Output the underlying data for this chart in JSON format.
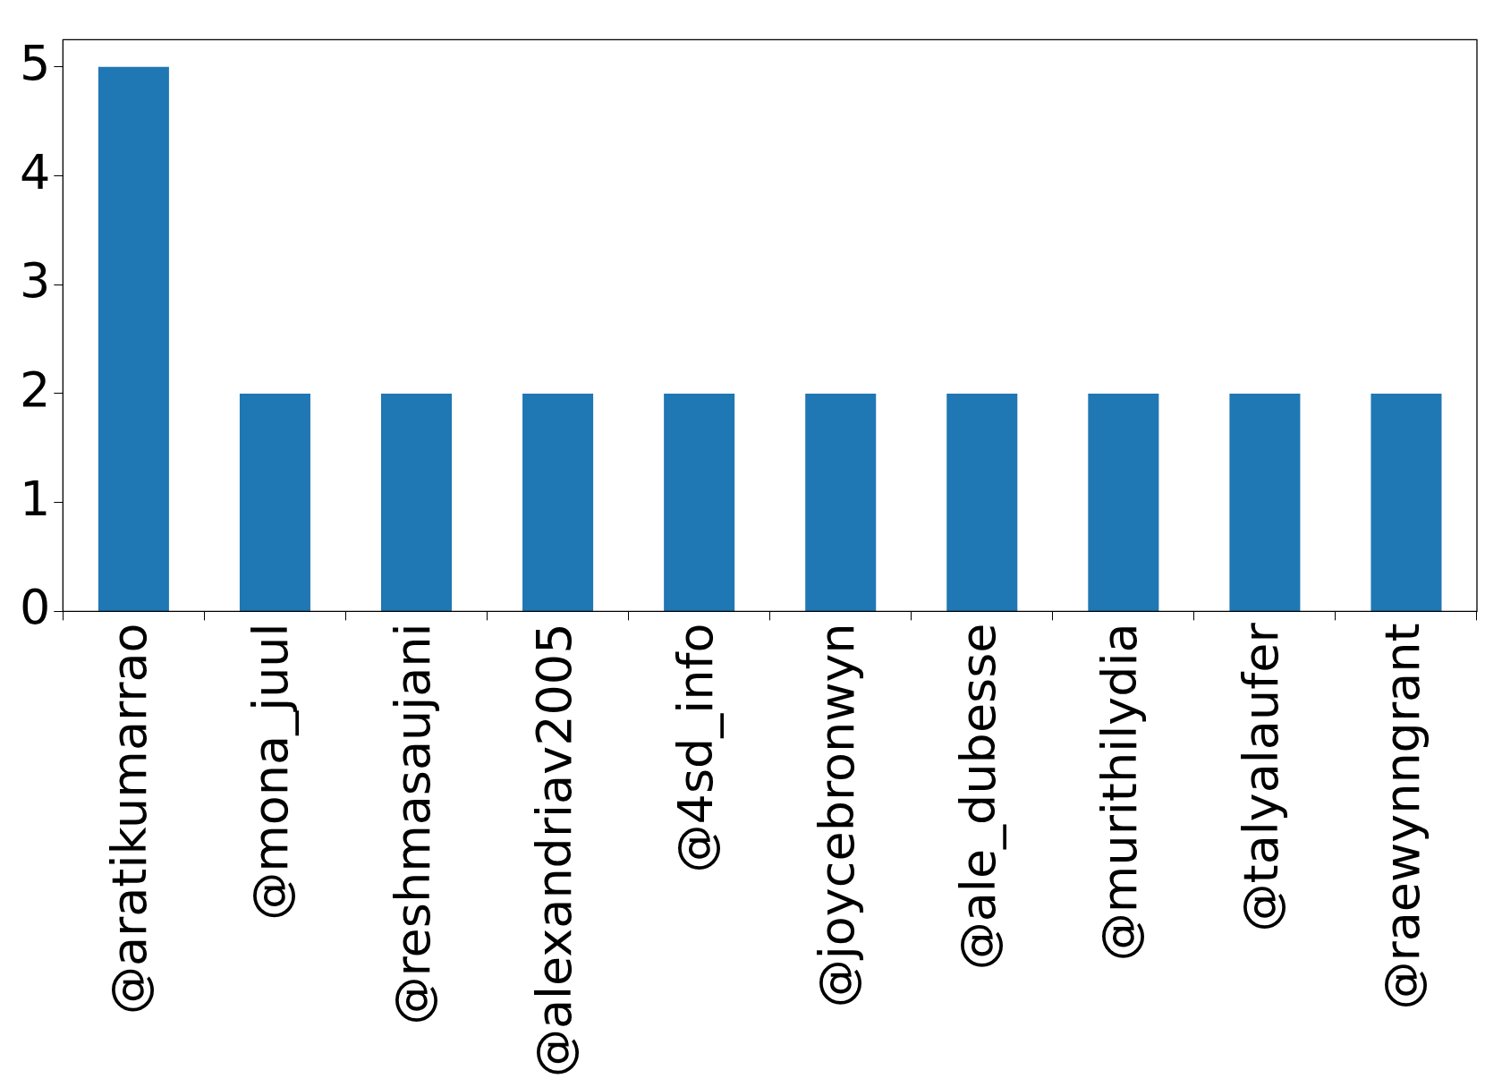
{
  "chart_data": {
    "type": "bar",
    "categories": [
      "@aratikumarrao",
      "@mona_juul",
      "@reshmasaujani",
      "@alexandriav2005",
      "@4sd_info",
      "@joycebronwyn",
      "@ale_dubesse",
      "@murithilydia",
      "@talyalaufer",
      "@raewynngrant"
    ],
    "values": [
      5,
      2,
      2,
      2,
      2,
      2,
      2,
      2,
      2,
      2
    ],
    "color": "#1f77b4",
    "ylim": [
      0,
      5.25
    ],
    "yticks": [
      0,
      1,
      2,
      3,
      4,
      5
    ],
    "grid": false,
    "legend": false
  }
}
